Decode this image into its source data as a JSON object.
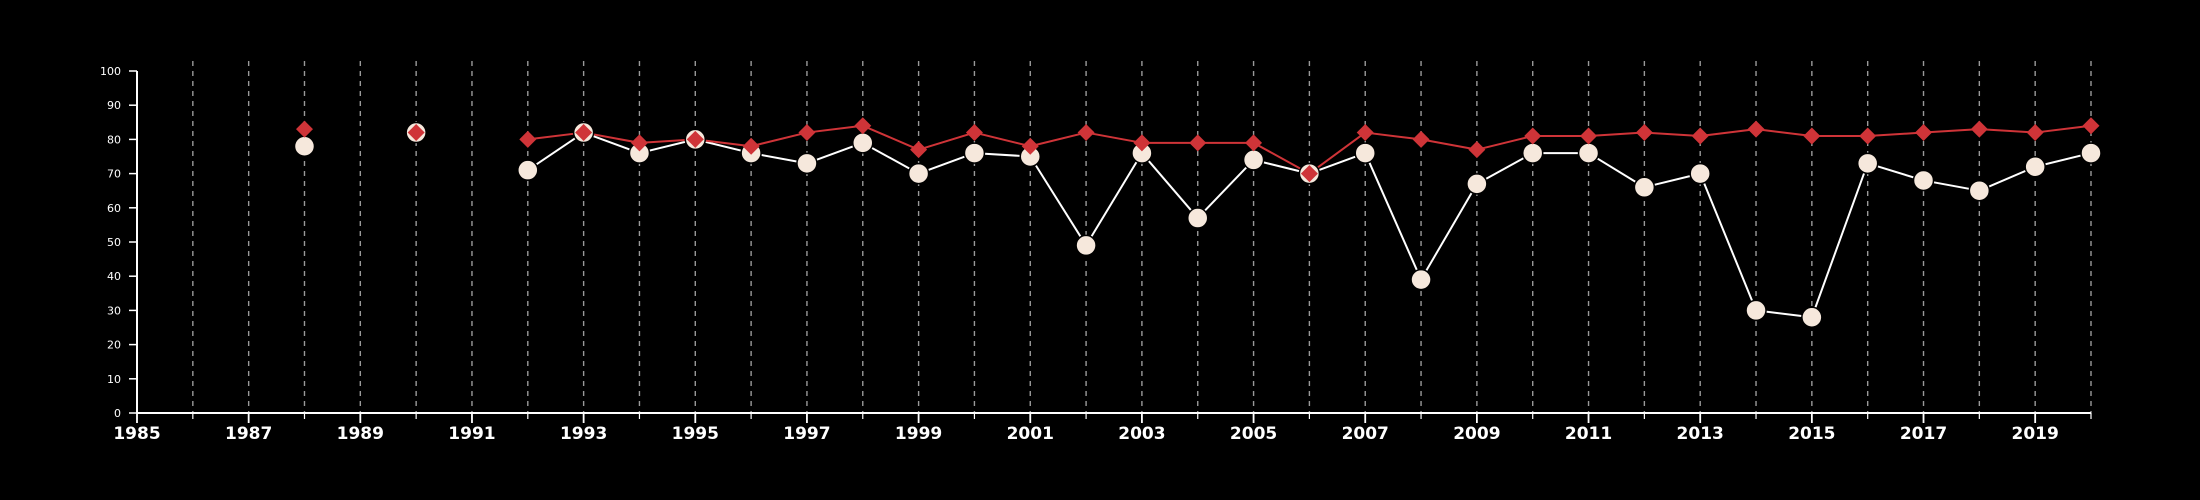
{
  "chart_data": {
    "type": "line",
    "x_ticks": [
      "1985",
      "1987",
      "1989",
      "1991",
      "1993",
      "1995",
      "1997",
      "1999",
      "2001",
      "2003",
      "2005",
      "2007",
      "2009",
      "2011",
      "2013",
      "2015",
      "2017",
      "2019"
    ],
    "y_ticks": [
      "0",
      "10",
      "20",
      "30",
      "40",
      "50",
      "60",
      "70",
      "80",
      "90",
      "100"
    ],
    "xlim": [
      1985,
      2020
    ],
    "ylim": [
      0,
      100
    ],
    "grid": {
      "x_dashed_vertical": true,
      "y_horizontal": false
    },
    "colors": {
      "background": "#000000",
      "axis": "#ffffff",
      "grid": "#9a9a9a",
      "series_red": "#cf3438",
      "series_cream": "#f6e8dc",
      "series_cream_line": "#ffffff",
      "cream_marker_edge": "#000000"
    },
    "series": [
      {
        "marker": "diamond",
        "color": "#cf3438",
        "values": [
          {
            "x": 1988,
            "y": 83
          },
          {
            "x": 1990,
            "y": 82
          },
          {
            "x": 1992,
            "y": 80
          },
          {
            "x": 1993,
            "y": 82
          },
          {
            "x": 1994,
            "y": 79
          },
          {
            "x": 1995,
            "y": 80
          },
          {
            "x": 1996,
            "y": 78
          },
          {
            "x": 1997,
            "y": 82
          },
          {
            "x": 1998,
            "y": 84
          },
          {
            "x": 1999,
            "y": 77
          },
          {
            "x": 2000,
            "y": 82
          },
          {
            "x": 2001,
            "y": 78
          },
          {
            "x": 2002,
            "y": 82
          },
          {
            "x": 2003,
            "y": 79
          },
          {
            "x": 2004,
            "y": 79
          },
          {
            "x": 2005,
            "y": 79
          },
          {
            "x": 2006,
            "y": 70
          },
          {
            "x": 2007,
            "y": 82
          },
          {
            "x": 2008,
            "y": 80
          },
          {
            "x": 2009,
            "y": 77
          },
          {
            "x": 2010,
            "y": 81
          },
          {
            "x": 2011,
            "y": 81
          },
          {
            "x": 2012,
            "y": 82
          },
          {
            "x": 2013,
            "y": 81
          },
          {
            "x": 2014,
            "y": 83
          },
          {
            "x": 2015,
            "y": 81
          },
          {
            "x": 2016,
            "y": 81
          },
          {
            "x": 2017,
            "y": 82
          },
          {
            "x": 2018,
            "y": 83
          },
          {
            "x": 2019,
            "y": 82
          },
          {
            "x": 2020,
            "y": 84
          }
        ]
      },
      {
        "marker": "circle",
        "color": "#f6e8dc",
        "values": [
          {
            "x": 1988,
            "y": 78
          },
          {
            "x": 1990,
            "y": 82
          },
          {
            "x": 1992,
            "y": 71
          },
          {
            "x": 1993,
            "y": 82
          },
          {
            "x": 1994,
            "y": 76
          },
          {
            "x": 1995,
            "y": 80
          },
          {
            "x": 1996,
            "y": 76
          },
          {
            "x": 1997,
            "y": 73
          },
          {
            "x": 1998,
            "y": 79
          },
          {
            "x": 1999,
            "y": 70
          },
          {
            "x": 2000,
            "y": 76
          },
          {
            "x": 2001,
            "y": 75
          },
          {
            "x": 2002,
            "y": 49
          },
          {
            "x": 2003,
            "y": 76
          },
          {
            "x": 2004,
            "y": 57
          },
          {
            "x": 2005,
            "y": 74
          },
          {
            "x": 2006,
            "y": 70
          },
          {
            "x": 2007,
            "y": 76
          },
          {
            "x": 2008,
            "y": 39
          },
          {
            "x": 2009,
            "y": 67
          },
          {
            "x": 2010,
            "y": 76
          },
          {
            "x": 2011,
            "y": 76
          },
          {
            "x": 2012,
            "y": 66
          },
          {
            "x": 2013,
            "y": 70
          },
          {
            "x": 2014,
            "y": 30
          },
          {
            "x": 2015,
            "y": 28
          },
          {
            "x": 2016,
            "y": 73
          },
          {
            "x": 2017,
            "y": 68
          },
          {
            "x": 2018,
            "y": 65
          },
          {
            "x": 2019,
            "y": 72
          },
          {
            "x": 2020,
            "y": 76
          }
        ]
      }
    ]
  }
}
